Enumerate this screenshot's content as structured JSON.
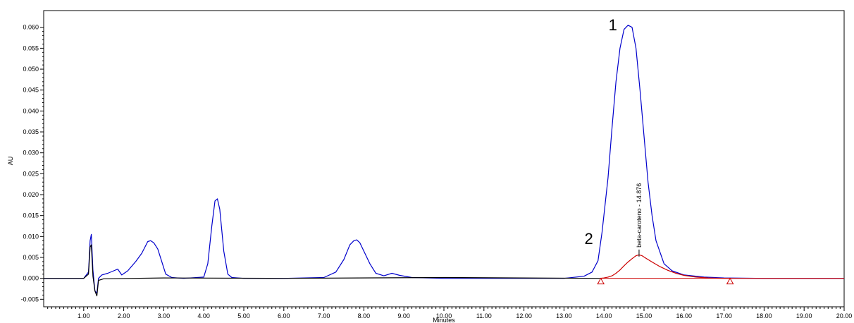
{
  "chart_data": {
    "type": "line",
    "xlabel": "Minutes",
    "ylabel": "AU",
    "xlim": [
      0.0,
      20.0
    ],
    "ylim": [
      -0.0068,
      0.064
    ],
    "x_ticks": [
      1,
      2,
      3,
      4,
      5,
      6,
      7,
      8,
      9,
      10,
      11,
      12,
      13,
      14,
      15,
      16,
      17,
      18,
      19,
      20
    ],
    "x_tick_labels": [
      "1.00",
      "2.00",
      "3.00",
      "4.00",
      "5.00",
      "6.00",
      "7.00",
      "8.00",
      "9.00",
      "10.00",
      "11.00",
      "12.00",
      "13.00",
      "14.00",
      "15.00",
      "16.00",
      "17.00",
      "18.00",
      "19.00",
      "20.00"
    ],
    "y_ticks": [
      -0.005,
      0.0,
      0.005,
      0.01,
      0.015,
      0.02,
      0.025,
      0.03,
      0.035,
      0.04,
      0.045,
      0.05,
      0.055,
      0.06
    ],
    "y_tick_labels": [
      "-0.005",
      "0.000",
      "0.005",
      "0.010",
      "0.015",
      "0.020",
      "0.025",
      "0.030",
      "0.035",
      "0.040",
      "0.045",
      "0.050",
      "0.055",
      "0.060"
    ],
    "grid": false,
    "legend": "none",
    "annotations": [
      {
        "text": "1",
        "x": 14.22,
        "y": 0.0593
      },
      {
        "text": "2",
        "x": 13.62,
        "y": 0.0082
      }
    ],
    "peak_label": {
      "text": "beta-caroteno - 14.876",
      "x": 14.876,
      "y": 0.0057
    },
    "integration_markers": [
      13.92,
      17.15
    ],
    "series": [
      {
        "color": "#0000cc",
        "x": [
          0.0,
          0.5,
          1.0,
          1.12,
          1.16,
          1.19,
          1.23,
          1.28,
          1.33,
          1.37,
          1.45,
          1.6,
          1.75,
          1.85,
          1.95,
          2.1,
          2.3,
          2.45,
          2.6,
          2.67,
          2.75,
          2.85,
          2.95,
          3.05,
          3.2,
          3.5,
          4.0,
          4.1,
          4.2,
          4.28,
          4.34,
          4.4,
          4.5,
          4.6,
          4.7,
          5.0,
          6.0,
          7.0,
          7.3,
          7.5,
          7.65,
          7.75,
          7.82,
          7.9,
          8.0,
          8.15,
          8.3,
          8.5,
          8.7,
          8.9,
          9.2,
          10.0,
          12.0,
          13.0,
          13.5,
          13.7,
          13.85,
          13.95,
          14.1,
          14.2,
          14.3,
          14.4,
          14.5,
          14.6,
          14.7,
          14.8,
          14.9,
          15.0,
          15.1,
          15.2,
          15.3,
          15.5,
          15.7,
          16.0,
          16.5,
          17.0,
          18.0,
          19.0,
          20.0
        ],
        "y": [
          0.0,
          0.0,
          0.0,
          0.0015,
          0.009,
          0.0105,
          0.002,
          -0.003,
          -0.0035,
          0.0,
          0.0008,
          0.0012,
          0.0018,
          0.0022,
          0.0008,
          0.0018,
          0.004,
          0.006,
          0.0088,
          0.009,
          0.0085,
          0.007,
          0.004,
          0.001,
          0.0002,
          0.0,
          0.0003,
          0.0035,
          0.0125,
          0.0185,
          0.019,
          0.0165,
          0.0065,
          0.001,
          0.0002,
          0.0,
          0.0,
          0.0002,
          0.0015,
          0.0045,
          0.008,
          0.009,
          0.0092,
          0.0085,
          0.0065,
          0.0035,
          0.0012,
          0.0006,
          0.0012,
          0.0007,
          0.0002,
          0.0,
          0.0,
          0.0,
          0.0005,
          0.0015,
          0.0042,
          0.011,
          0.024,
          0.036,
          0.047,
          0.055,
          0.0595,
          0.0605,
          0.06,
          0.055,
          0.045,
          0.034,
          0.023,
          0.015,
          0.009,
          0.0035,
          0.0018,
          0.0008,
          0.0003,
          0.0001,
          0.0,
          0.0,
          0.0
        ]
      },
      {
        "color": "#000000",
        "x": [
          0.0,
          0.5,
          1.0,
          1.12,
          1.16,
          1.19,
          1.23,
          1.28,
          1.33,
          1.37,
          1.5,
          3.0,
          6.0,
          10.0,
          13.9
        ],
        "y": [
          0.0,
          0.0,
          0.0,
          0.001,
          0.0075,
          0.008,
          0.0005,
          -0.003,
          -0.0042,
          -0.0005,
          -0.0001,
          0.0001,
          0.0,
          0.0002,
          0.0
        ]
      },
      {
        "color": "#cc0000",
        "x": [
          13.9,
          14.0,
          14.1,
          14.2,
          14.3,
          14.4,
          14.5,
          14.6,
          14.7,
          14.8,
          14.876,
          14.95,
          15.05,
          15.2,
          15.4,
          15.6,
          15.8,
          16.0,
          16.3,
          16.6,
          17.0,
          17.2,
          18.0,
          19.0,
          20.0
        ],
        "y": [
          0.0,
          0.0001,
          0.0003,
          0.0006,
          0.0012,
          0.002,
          0.003,
          0.0039,
          0.0047,
          0.0054,
          0.0056,
          0.0054,
          0.0048,
          0.0039,
          0.0028,
          0.0019,
          0.0012,
          0.0007,
          0.0003,
          0.0001,
          0.0,
          0.0,
          0.0,
          0.0,
          0.0
        ]
      }
    ],
    "baseline": {
      "color": "#cc0000",
      "x": [
        13.92,
        17.15
      ],
      "y": [
        0.0,
        0.0
      ]
    }
  }
}
